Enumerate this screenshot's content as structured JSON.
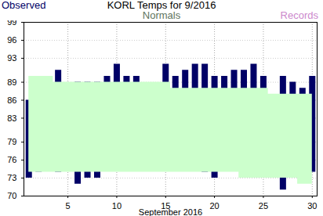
{
  "chart_data": {
    "type": "range_bar",
    "title": "KORL Temps for 9/2016",
    "x": [
      1,
      2,
      3,
      4,
      5,
      6,
      7,
      8,
      9,
      10,
      11,
      12,
      13,
      14,
      15,
      16,
      17,
      18,
      19,
      20,
      21,
      22,
      23,
      24,
      25,
      26,
      27,
      28,
      29,
      30
    ],
    "xlim": [
      0.5,
      30.5
    ],
    "xticks": [
      5,
      10,
      15,
      20,
      25,
      30
    ],
    "x_label": "September 2016",
    "ylim": [
      70,
      99
    ],
    "yticks": [
      70,
      73,
      76,
      79,
      83,
      86,
      89,
      93,
      96,
      99
    ],
    "grid": true,
    "series": [
      {
        "name": "Observed",
        "color": "#000066",
        "high": [
          86,
          85,
          86,
          91,
          85,
          89,
          89,
          89,
          90,
          92,
          90,
          90,
          84,
          88,
          92,
          90,
          91,
          92,
          92,
          90,
          90,
          91,
          91,
          92,
          90,
          86,
          90,
          89,
          88,
          90
        ],
        "low": [
          73,
          74,
          75,
          74,
          75,
          72,
          73,
          73,
          75,
          75,
          75,
          75,
          75,
          75,
          75,
          75,
          76,
          75,
          74,
          73,
          75,
          75,
          75,
          75,
          75,
          74,
          71,
          73,
          73,
          74
        ]
      },
      {
        "name": "Normals",
        "color": "#ccffcc",
        "high": [
          90,
          90,
          90,
          89,
          89,
          89,
          89,
          89,
          89,
          89,
          89,
          89,
          89,
          89,
          89,
          88,
          88,
          88,
          88,
          88,
          88,
          88,
          88,
          88,
          88,
          87,
          87,
          87,
          87,
          87
        ],
        "low": [
          74,
          74,
          74,
          74,
          74,
          74,
          74,
          74,
          74,
          74,
          74,
          74,
          74,
          74,
          74,
          74,
          74,
          74,
          74,
          74,
          74,
          74,
          73,
          73,
          73,
          73,
          73,
          73,
          72,
          72
        ]
      },
      {
        "name": "Records",
        "color": "#cc88cc",
        "high": [
          null,
          null,
          null,
          null,
          null,
          null,
          null,
          null,
          null,
          null,
          null,
          null,
          null,
          null,
          null,
          null,
          null,
          null,
          null,
          null,
          null,
          null,
          null,
          null,
          null,
          null,
          null,
          null,
          null,
          null
        ],
        "low": [
          null,
          null,
          null,
          null,
          null,
          null,
          null,
          null,
          null,
          null,
          null,
          null,
          null,
          null,
          null,
          null,
          null,
          null,
          null,
          null,
          null,
          null,
          null,
          null,
          null,
          null,
          null,
          null,
          null,
          null
        ]
      }
    ]
  }
}
